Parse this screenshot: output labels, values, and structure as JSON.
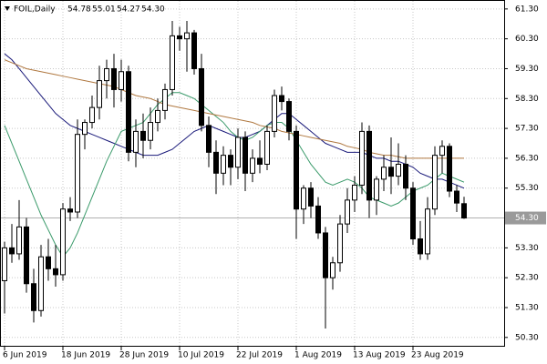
{
  "chart_data": {
    "type": "candlestick",
    "header": {
      "symbol": "FOIL,Daily",
      "open": "54.78",
      "high": "55.01",
      "low": "54.27",
      "close": "54.30"
    },
    "categories": [
      "6 Jun 2019",
      null,
      null,
      null,
      null,
      null,
      null,
      null,
      "18 Jun 2019",
      null,
      null,
      null,
      null,
      null,
      null,
      null,
      "28 Jun 2019",
      null,
      null,
      null,
      null,
      null,
      null,
      null,
      "10 Jul 2019",
      null,
      null,
      null,
      null,
      null,
      null,
      null,
      "22 Jul 2019",
      null,
      null,
      null,
      null,
      null,
      null,
      null,
      "1 Aug 2019",
      null,
      null,
      null,
      null,
      null,
      null,
      null,
      "13 Aug 2019",
      null,
      null,
      null,
      null,
      null,
      null,
      null,
      "23 Aug 2019",
      null,
      null,
      null,
      null,
      null,
      null,
      null
    ],
    "candles": [
      [
        52.2,
        53.5,
        51.1,
        53.3
      ],
      [
        53.3,
        54.1,
        52.8,
        53.1
      ],
      [
        53.1,
        54.9,
        52.9,
        54.0
      ],
      [
        54.0,
        54.3,
        51.8,
        52.1
      ],
      [
        52.1,
        52.6,
        50.8,
        51.2
      ],
      [
        51.2,
        53.4,
        51.0,
        53.0
      ],
      [
        53.0,
        53.6,
        52.2,
        52.6
      ],
      [
        52.6,
        53.4,
        52.0,
        52.4
      ],
      [
        52.4,
        54.8,
        52.2,
        54.6
      ],
      [
        54.6,
        55.0,
        54.2,
        54.5
      ],
      [
        54.5,
        57.6,
        54.3,
        57.1
      ],
      [
        57.1,
        57.6,
        56.6,
        57.5
      ],
      [
        57.5,
        58.4,
        57.3,
        58.0
      ],
      [
        58.0,
        59.4,
        57.6,
        58.9
      ],
      [
        58.9,
        59.6,
        58.3,
        59.3
      ],
      [
        59.3,
        59.8,
        58.0,
        58.6
      ],
      [
        58.6,
        59.6,
        58.2,
        59.2
      ],
      [
        59.2,
        59.4,
        56.2,
        56.5
      ],
      [
        56.5,
        57.6,
        56.0,
        57.2
      ],
      [
        57.2,
        57.8,
        56.3,
        56.9
      ],
      [
        56.9,
        58.0,
        56.6,
        57.5
      ],
      [
        57.5,
        58.3,
        57.2,
        57.9
      ],
      [
        57.9,
        58.8,
        57.6,
        58.6
      ],
      [
        58.6,
        60.9,
        58.4,
        60.4
      ],
      [
        60.4,
        60.7,
        59.9,
        60.3
      ],
      [
        60.3,
        60.9,
        59.2,
        60.5
      ],
      [
        60.5,
        60.6,
        59.1,
        59.3
      ],
      [
        59.3,
        59.8,
        57.2,
        57.4
      ],
      [
        57.4,
        57.7,
        56.0,
        56.5
      ],
      [
        56.5,
        56.9,
        55.1,
        55.8
      ],
      [
        55.8,
        56.7,
        55.4,
        56.4
      ],
      [
        56.4,
        56.6,
        55.4,
        56.0
      ],
      [
        56.0,
        57.3,
        55.6,
        57.0
      ],
      [
        57.0,
        57.2,
        55.2,
        55.8
      ],
      [
        55.8,
        56.6,
        55.5,
        56.3
      ],
      [
        56.3,
        56.9,
        55.8,
        56.1
      ],
      [
        56.1,
        57.4,
        55.9,
        57.2
      ],
      [
        57.2,
        58.6,
        57.0,
        58.4
      ],
      [
        58.4,
        58.7,
        57.9,
        58.2
      ],
      [
        58.2,
        58.3,
        56.9,
        57.2
      ],
      [
        57.2,
        57.4,
        53.6,
        54.6
      ],
      [
        54.6,
        55.4,
        54.1,
        55.3
      ],
      [
        55.3,
        55.5,
        54.3,
        54.7
      ],
      [
        54.7,
        55.0,
        53.6,
        53.8
      ],
      [
        53.8,
        54.0,
        50.6,
        52.3
      ],
      [
        52.3,
        53.0,
        51.9,
        52.8
      ],
      [
        52.8,
        54.4,
        52.5,
        54.1
      ],
      [
        54.1,
        55.3,
        53.8,
        54.9
      ],
      [
        54.9,
        55.7,
        54.5,
        55.4
      ],
      [
        55.4,
        57.5,
        55.1,
        57.2
      ],
      [
        57.2,
        57.4,
        54.3,
        54.9
      ],
      [
        54.9,
        55.7,
        54.4,
        55.6
      ],
      [
        55.6,
        56.4,
        55.2,
        56.0
      ],
      [
        56.0,
        57.0,
        55.1,
        55.7
      ],
      [
        55.7,
        56.8,
        55.4,
        56.1
      ],
      [
        56.1,
        56.4,
        54.9,
        55.3
      ],
      [
        55.3,
        55.5,
        53.4,
        53.6
      ],
      [
        53.6,
        54.2,
        52.9,
        53.1
      ],
      [
        53.1,
        55.0,
        52.9,
        54.6
      ],
      [
        54.6,
        56.7,
        54.4,
        56.4
      ],
      [
        56.4,
        56.9,
        55.8,
        56.7
      ],
      [
        56.7,
        56.8,
        55.0,
        55.2
      ],
      [
        55.2,
        55.4,
        54.5,
        54.8
      ],
      [
        54.78,
        55.01,
        54.27,
        54.3
      ]
    ],
    "series": [
      {
        "color": "#1a1a7a",
        "values": [
          59.8,
          59.6,
          59.3,
          59.0,
          58.7,
          58.4,
          58.1,
          57.8,
          57.6,
          57.4,
          57.3,
          57.2,
          57.1,
          57.0,
          56.9,
          56.8,
          56.7,
          56.6,
          56.5,
          56.4,
          56.4,
          56.4,
          56.5,
          56.6,
          56.8,
          57.0,
          57.2,
          57.3,
          57.4,
          57.3,
          57.2,
          57.1,
          57.0,
          57.0,
          57.1,
          57.2,
          57.4,
          57.6,
          57.8,
          57.8,
          57.6,
          57.4,
          57.2,
          57.0,
          56.8,
          56.7,
          56.6,
          56.5,
          56.5,
          56.5,
          56.4,
          56.3,
          56.3,
          56.2,
          56.2,
          56.1,
          56.0,
          55.8,
          55.7,
          55.6,
          55.6,
          55.5,
          55.4,
          55.3
        ]
      },
      {
        "color": "#3a9a6a",
        "values": [
          57.4,
          56.8,
          56.2,
          55.6,
          55.0,
          54.4,
          53.9,
          53.4,
          53.0,
          53.3,
          53.8,
          54.4,
          55.0,
          55.6,
          56.2,
          56.7,
          57.2,
          57.3,
          57.4,
          57.5,
          57.8,
          58.1,
          58.3,
          58.5,
          58.5,
          58.4,
          58.3,
          58.1,
          57.9,
          57.7,
          57.5,
          57.2,
          57.0,
          56.9,
          57.0,
          57.2,
          57.4,
          57.5,
          57.5,
          57.3,
          56.9,
          56.5,
          56.1,
          55.8,
          55.5,
          55.4,
          55.5,
          55.6,
          55.5,
          55.3,
          55.0,
          54.9,
          54.8,
          54.7,
          54.8,
          55.0,
          55.2,
          55.3,
          55.4,
          55.6,
          55.8,
          55.7,
          55.6,
          55.5
        ]
      },
      {
        "color": "#b07840",
        "values": [
          59.6,
          59.5,
          59.4,
          59.3,
          59.25,
          59.2,
          59.15,
          59.1,
          59.05,
          59.0,
          58.95,
          58.9,
          58.85,
          58.8,
          58.75,
          58.7,
          58.6,
          58.5,
          58.4,
          58.35,
          58.3,
          58.2,
          58.1,
          58.05,
          58.0,
          57.95,
          57.9,
          57.85,
          57.8,
          57.75,
          57.7,
          57.65,
          57.6,
          57.55,
          57.5,
          57.4,
          57.35,
          57.3,
          57.2,
          57.15,
          57.1,
          57.05,
          57.0,
          56.95,
          56.9,
          56.85,
          56.8,
          56.7,
          56.65,
          56.6,
          56.5,
          56.45,
          56.4,
          56.4,
          56.35,
          56.3,
          56.3,
          56.3,
          56.3,
          56.3,
          56.3,
          56.3,
          56.3,
          56.3
        ]
      }
    ],
    "last_price": {
      "value": 54.3,
      "label": "54.30"
    },
    "ylim": [
      50.02,
      61.6
    ],
    "yticks": [
      {
        "value": 61.3,
        "label": "61.30"
      },
      {
        "value": 60.3,
        "label": "60.30"
      },
      {
        "value": 59.3,
        "label": "59.30"
      },
      {
        "value": 58.3,
        "label": "58.30"
      },
      {
        "value": 57.3,
        "label": "57.30"
      },
      {
        "value": 56.3,
        "label": "56.30"
      },
      {
        "value": 55.3,
        "label": "55.30"
      },
      {
        "value": 54.3,
        "label": "54.30"
      },
      {
        "value": 53.3,
        "label": "53.30"
      },
      {
        "value": 52.3,
        "label": "52.30"
      },
      {
        "value": 51.3,
        "label": "51.30"
      },
      {
        "value": 50.3,
        "label": "50.30"
      }
    ],
    "grid": true
  }
}
